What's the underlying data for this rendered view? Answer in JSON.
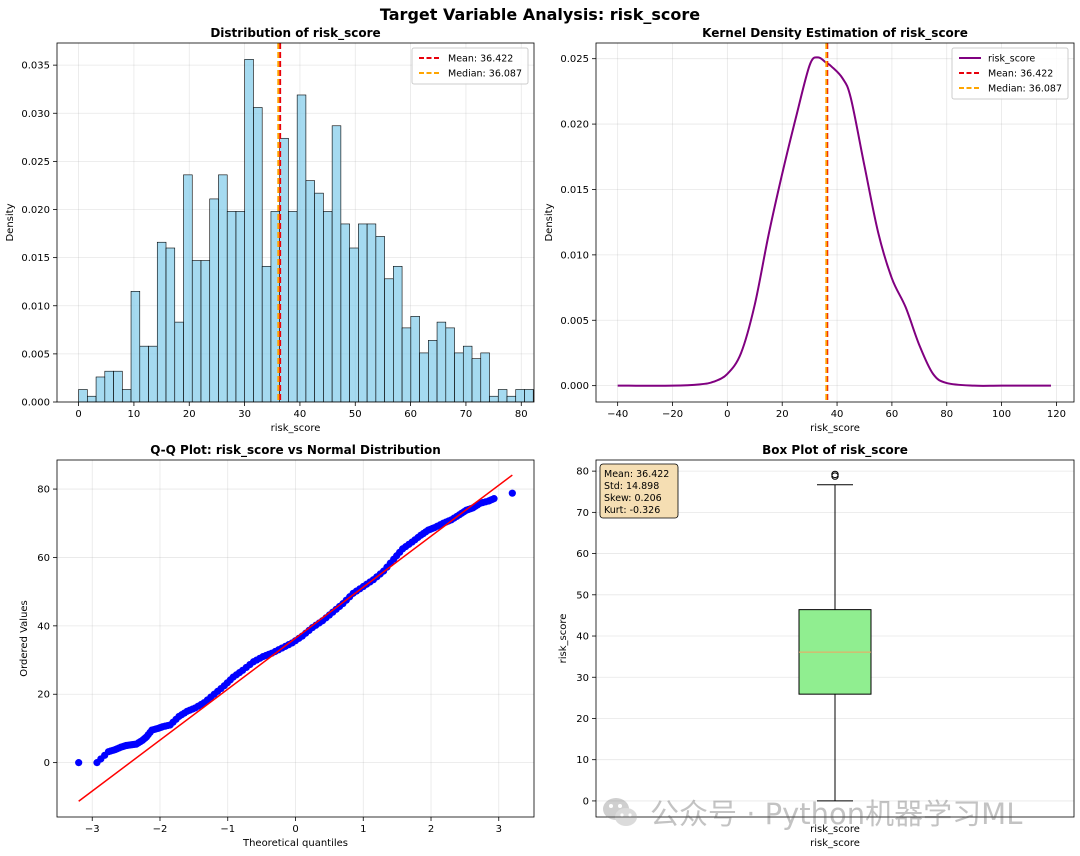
{
  "suptitle": "Target Variable Analysis: risk_score",
  "watermark": "公众号 · Python机器学习ML",
  "chart_data": [
    {
      "type": "bar",
      "subtype": "histogram",
      "title": "Distribution of risk_score",
      "xlabel": "risk_score",
      "ylabel": "Density",
      "xlim": [
        -3.9,
        82.3
      ],
      "ylim": [
        0,
        0.0373
      ],
      "xticks": [
        0,
        10,
        20,
        30,
        40,
        50,
        60,
        70,
        80
      ],
      "yticks": [
        0.0,
        0.005,
        0.01,
        0.015,
        0.02,
        0.025,
        0.03,
        0.035
      ],
      "ytick_labels": [
        "0.000",
        "0.005",
        "0.010",
        "0.015",
        "0.020",
        "0.025",
        "0.030",
        "0.035"
      ],
      "bin_start": 0,
      "bin_width": 1.58,
      "values": [
        0.0013,
        0.0006,
        0.0026,
        0.0032,
        0.0032,
        0.0013,
        0.0115,
        0.0058,
        0.0058,
        0.0166,
        0.016,
        0.0083,
        0.0236,
        0.0147,
        0.0147,
        0.0211,
        0.0236,
        0.0198,
        0.0198,
        0.0356,
        0.0306,
        0.0141,
        0.0198,
        0.0274,
        0.0198,
        0.0319,
        0.023,
        0.0217,
        0.0198,
        0.0287,
        0.0185,
        0.016,
        0.0185,
        0.0185,
        0.0172,
        0.0128,
        0.0141,
        0.0077,
        0.0089,
        0.0051,
        0.0064,
        0.0083,
        0.0077,
        0.0051,
        0.0058,
        0.0045,
        0.0051,
        0.0006,
        0.0013,
        0.0006,
        0.0013,
        0.0013
      ],
      "bar_color": "#87ceeb",
      "lines": [
        {
          "name": "Mean: 36.422",
          "x": 36.422,
          "color": "#e8000b"
        },
        {
          "name": "Median: 36.087",
          "x": 36.087,
          "color": "#ffa500"
        }
      ],
      "grid": true,
      "legend": "top-right"
    },
    {
      "type": "line",
      "title": "Kernel Density Estimation of risk_score",
      "xlabel": "risk_score",
      "ylabel": "Density",
      "xlim": [
        -47.9,
        126.4
      ],
      "ylim": [
        -0.00125,
        0.0262
      ],
      "xticks": [
        -40,
        -20,
        0,
        20,
        40,
        60,
        80,
        100,
        120
      ],
      "yticks": [
        0.0,
        0.005,
        0.01,
        0.015,
        0.02,
        0.025
      ],
      "ytick_labels": [
        "0.000",
        "0.005",
        "0.010",
        "0.015",
        "0.020",
        "0.025"
      ],
      "series": [
        {
          "name": "risk_score",
          "color": "#800080",
          "x": [
            -40,
            -20,
            -10,
            -5,
            0,
            5,
            10,
            15,
            20,
            25,
            30,
            33,
            36,
            38,
            42,
            45,
            50,
            55,
            60,
            65,
            70,
            75,
            80,
            90,
            100,
            118
          ],
          "y": [
            0,
            0,
            0.0001,
            0.0003,
            0.0009,
            0.0025,
            0.0062,
            0.0115,
            0.0162,
            0.0205,
            0.0245,
            0.0251,
            0.0247,
            0.0244,
            0.0235,
            0.022,
            0.0168,
            0.0117,
            0.0082,
            0.006,
            0.0031,
            0.0009,
            0.0002,
            0,
            0,
            0
          ]
        }
      ],
      "lines": [
        {
          "name": "Mean: 36.422",
          "x": 36.422,
          "color": "#e8000b"
        },
        {
          "name": "Median: 36.087",
          "x": 36.087,
          "color": "#ffa500"
        }
      ],
      "grid": true,
      "legend": "top-right"
    },
    {
      "type": "scatter",
      "title": "Q-Q Plot: risk_score vs Normal Distribution",
      "xlabel": "Theoretical quantiles",
      "ylabel": "Ordered Values",
      "xlim": [
        -3.52,
        3.52
      ],
      "ylim": [
        -15.9,
        88.5
      ],
      "xticks": [
        -3,
        -2,
        -1,
        0,
        1,
        2,
        3
      ],
      "yticks": [
        0,
        20,
        40,
        60,
        80
      ],
      "point_color": "#0000ff",
      "line_color": "#ff0000",
      "fit_line": {
        "x": [
          -3.2,
          3.2
        ],
        "y": [
          -11.3,
          84.1
        ]
      },
      "points": {
        "x": [
          -3.2,
          -2.93,
          -2.76,
          -2.66,
          -2.58,
          -2.5,
          -2.43,
          -2.35,
          -2.26,
          -2.2,
          -2.12,
          -2.03,
          -1.96,
          -1.85,
          -1.72,
          -1.6,
          -1.48,
          -1.35,
          -1.2,
          -1.05,
          -0.92,
          -0.78,
          -0.62,
          -0.48,
          -0.35,
          -0.2,
          -0.05,
          0.1,
          0.25,
          0.4,
          0.55,
          0.7,
          0.85,
          1.0,
          1.15,
          1.3,
          1.45,
          1.58,
          1.72,
          1.85,
          1.96,
          2.05,
          2.18,
          2.3,
          2.42,
          2.52,
          2.62,
          2.72,
          2.85,
          2.93,
          3.2
        ],
        "y": [
          0,
          0,
          3.2,
          3.8,
          4.5,
          5.0,
          5.2,
          5.4,
          6.5,
          7.5,
          9.5,
          10.0,
          10.5,
          11.0,
          13.5,
          15.0,
          16.0,
          17.5,
          20.0,
          22.5,
          25.0,
          27.0,
          29.5,
          31.0,
          32.0,
          33.5,
          35.0,
          37.0,
          39.5,
          41.5,
          44.0,
          46.5,
          49.5,
          51.5,
          53.5,
          56.0,
          59.5,
          62.5,
          64.5,
          66.5,
          68.0,
          68.7,
          70.0,
          71.0,
          72.5,
          73.8,
          74.5,
          75.8,
          76.5,
          77.2,
          78.8
        ]
      },
      "grid": true
    },
    {
      "type": "box",
      "title": "Box Plot of risk_score",
      "xlabel": "risk_score",
      "ylabel": "risk_score",
      "ylim": [
        -3.9,
        82.7
      ],
      "yticks": [
        0,
        10,
        20,
        30,
        40,
        50,
        60,
        70,
        80
      ],
      "whisker_low": 0,
      "q1": 25.9,
      "median": 36.1,
      "q3": 46.4,
      "whisker_high": 76.7,
      "fliers": [
        78.8,
        79.2
      ],
      "box_color": "#90ee90",
      "median_color": "#f4a460",
      "stats_box": [
        "Mean: 36.422",
        "Std: 14.898",
        "Skew: 0.206",
        "Kurt: -0.326"
      ],
      "stats_box_color": "#f5deb3",
      "grid": true
    }
  ]
}
